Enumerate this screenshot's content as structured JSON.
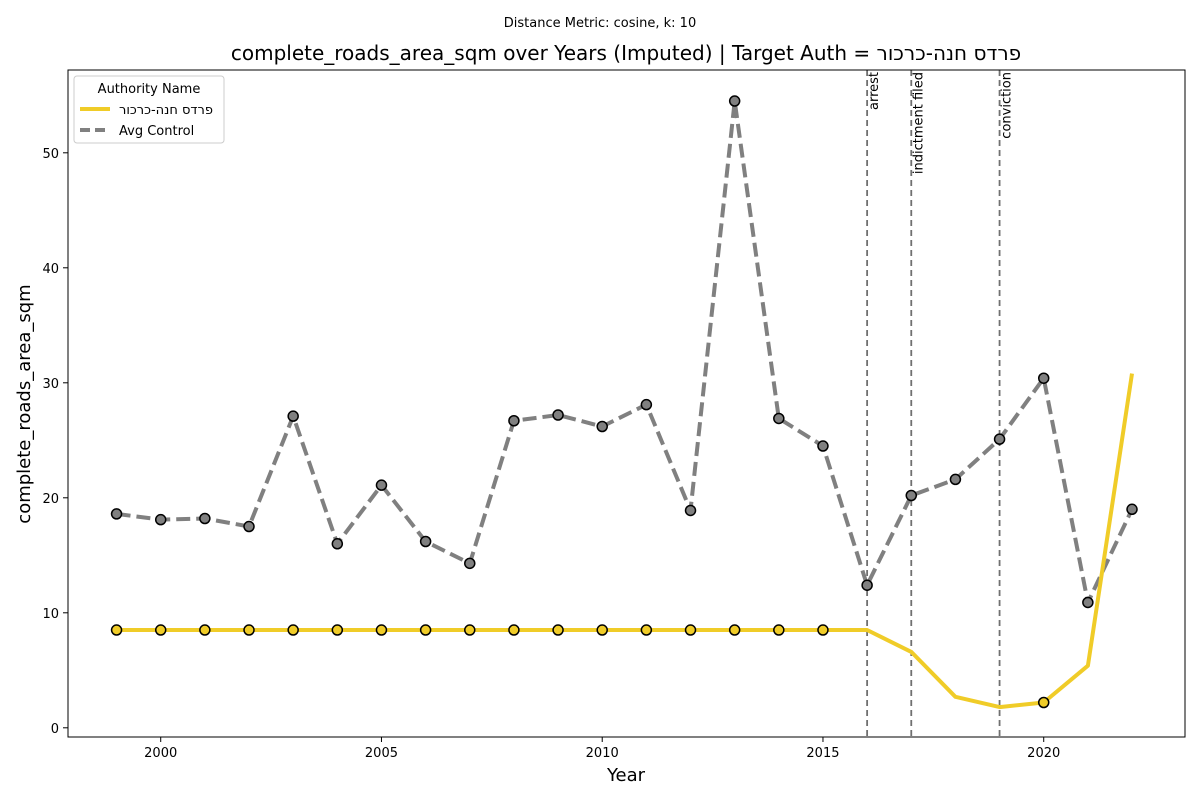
{
  "chart_data": {
    "type": "line",
    "suptitle": "Distance Metric: cosine, k: 10",
    "title": "complete_roads_area_sqm over Years (Imputed) | Target Auth = פרדס חנה-כרכור",
    "xlabel": "Year",
    "ylabel": "complete_roads_area_sqm",
    "xlim": [
      1997.9,
      2023.2
    ],
    "ylim": [
      -0.8,
      57.2
    ],
    "xticks": [
      2000,
      2005,
      2010,
      2015,
      2020
    ],
    "yticks": [
      0,
      10,
      20,
      30,
      40,
      50
    ],
    "grid": false,
    "legend": {
      "title": "Authority Name",
      "placement": "top-left",
      "entries": [
        "פרדס חנה-כרכור",
        "Avg Control"
      ]
    },
    "series": [
      {
        "name": "פרדס חנה-כרכור",
        "color": "#f0cc28",
        "style": "solid",
        "x": [
          1999,
          2000,
          2001,
          2002,
          2003,
          2004,
          2005,
          2006,
          2007,
          2008,
          2009,
          2010,
          2011,
          2012,
          2013,
          2014,
          2015,
          2016,
          2017,
          2018,
          2019,
          2020,
          2021,
          2022
        ],
        "y": [
          8.5,
          8.5,
          8.5,
          8.5,
          8.5,
          8.5,
          8.5,
          8.5,
          8.5,
          8.5,
          8.5,
          8.5,
          8.5,
          8.5,
          8.5,
          8.5,
          8.5,
          8.5,
          6.6,
          2.7,
          1.8,
          2.2,
          5.4,
          30.8
        ],
        "marker_x": [
          1999,
          2000,
          2001,
          2002,
          2003,
          2004,
          2005,
          2006,
          2007,
          2008,
          2009,
          2010,
          2011,
          2012,
          2013,
          2014,
          2015,
          2020
        ],
        "marker_y": [
          8.5,
          8.5,
          8.5,
          8.5,
          8.5,
          8.5,
          8.5,
          8.5,
          8.5,
          8.5,
          8.5,
          8.5,
          8.5,
          8.5,
          8.5,
          8.5,
          8.5,
          2.2
        ]
      },
      {
        "name": "Avg Control",
        "color": "#808080",
        "style": "dashed",
        "x": [
          1999,
          2000,
          2001,
          2002,
          2003,
          2004,
          2005,
          2006,
          2007,
          2008,
          2009,
          2010,
          2011,
          2012,
          2013,
          2014,
          2015,
          2016,
          2017,
          2018,
          2019,
          2020,
          2021,
          2022
        ],
        "y": [
          18.6,
          18.1,
          18.2,
          17.5,
          27.1,
          16.0,
          21.1,
          16.2,
          14.3,
          26.7,
          27.2,
          26.2,
          28.1,
          18.9,
          54.5,
          26.9,
          24.5,
          12.4,
          20.2,
          21.6,
          25.1,
          30.4,
          10.9,
          19.0
        ],
        "marker_x": [
          1999,
          2000,
          2001,
          2002,
          2003,
          2004,
          2005,
          2006,
          2007,
          2008,
          2009,
          2010,
          2011,
          2012,
          2013,
          2014,
          2015,
          2016,
          2017,
          2018,
          2019,
          2020,
          2021,
          2022
        ],
        "marker_y": [
          18.6,
          18.1,
          18.2,
          17.5,
          27.1,
          16.0,
          21.1,
          16.2,
          14.3,
          26.7,
          27.2,
          26.2,
          28.1,
          18.9,
          54.5,
          26.9,
          24.5,
          12.4,
          20.2,
          21.6,
          25.1,
          30.4,
          10.9,
          19.0
        ]
      }
    ],
    "events": [
      {
        "x": 2016,
        "label": "arrest"
      },
      {
        "x": 2017,
        "label": "indictment filed"
      },
      {
        "x": 2019,
        "label": "conviction"
      }
    ]
  }
}
